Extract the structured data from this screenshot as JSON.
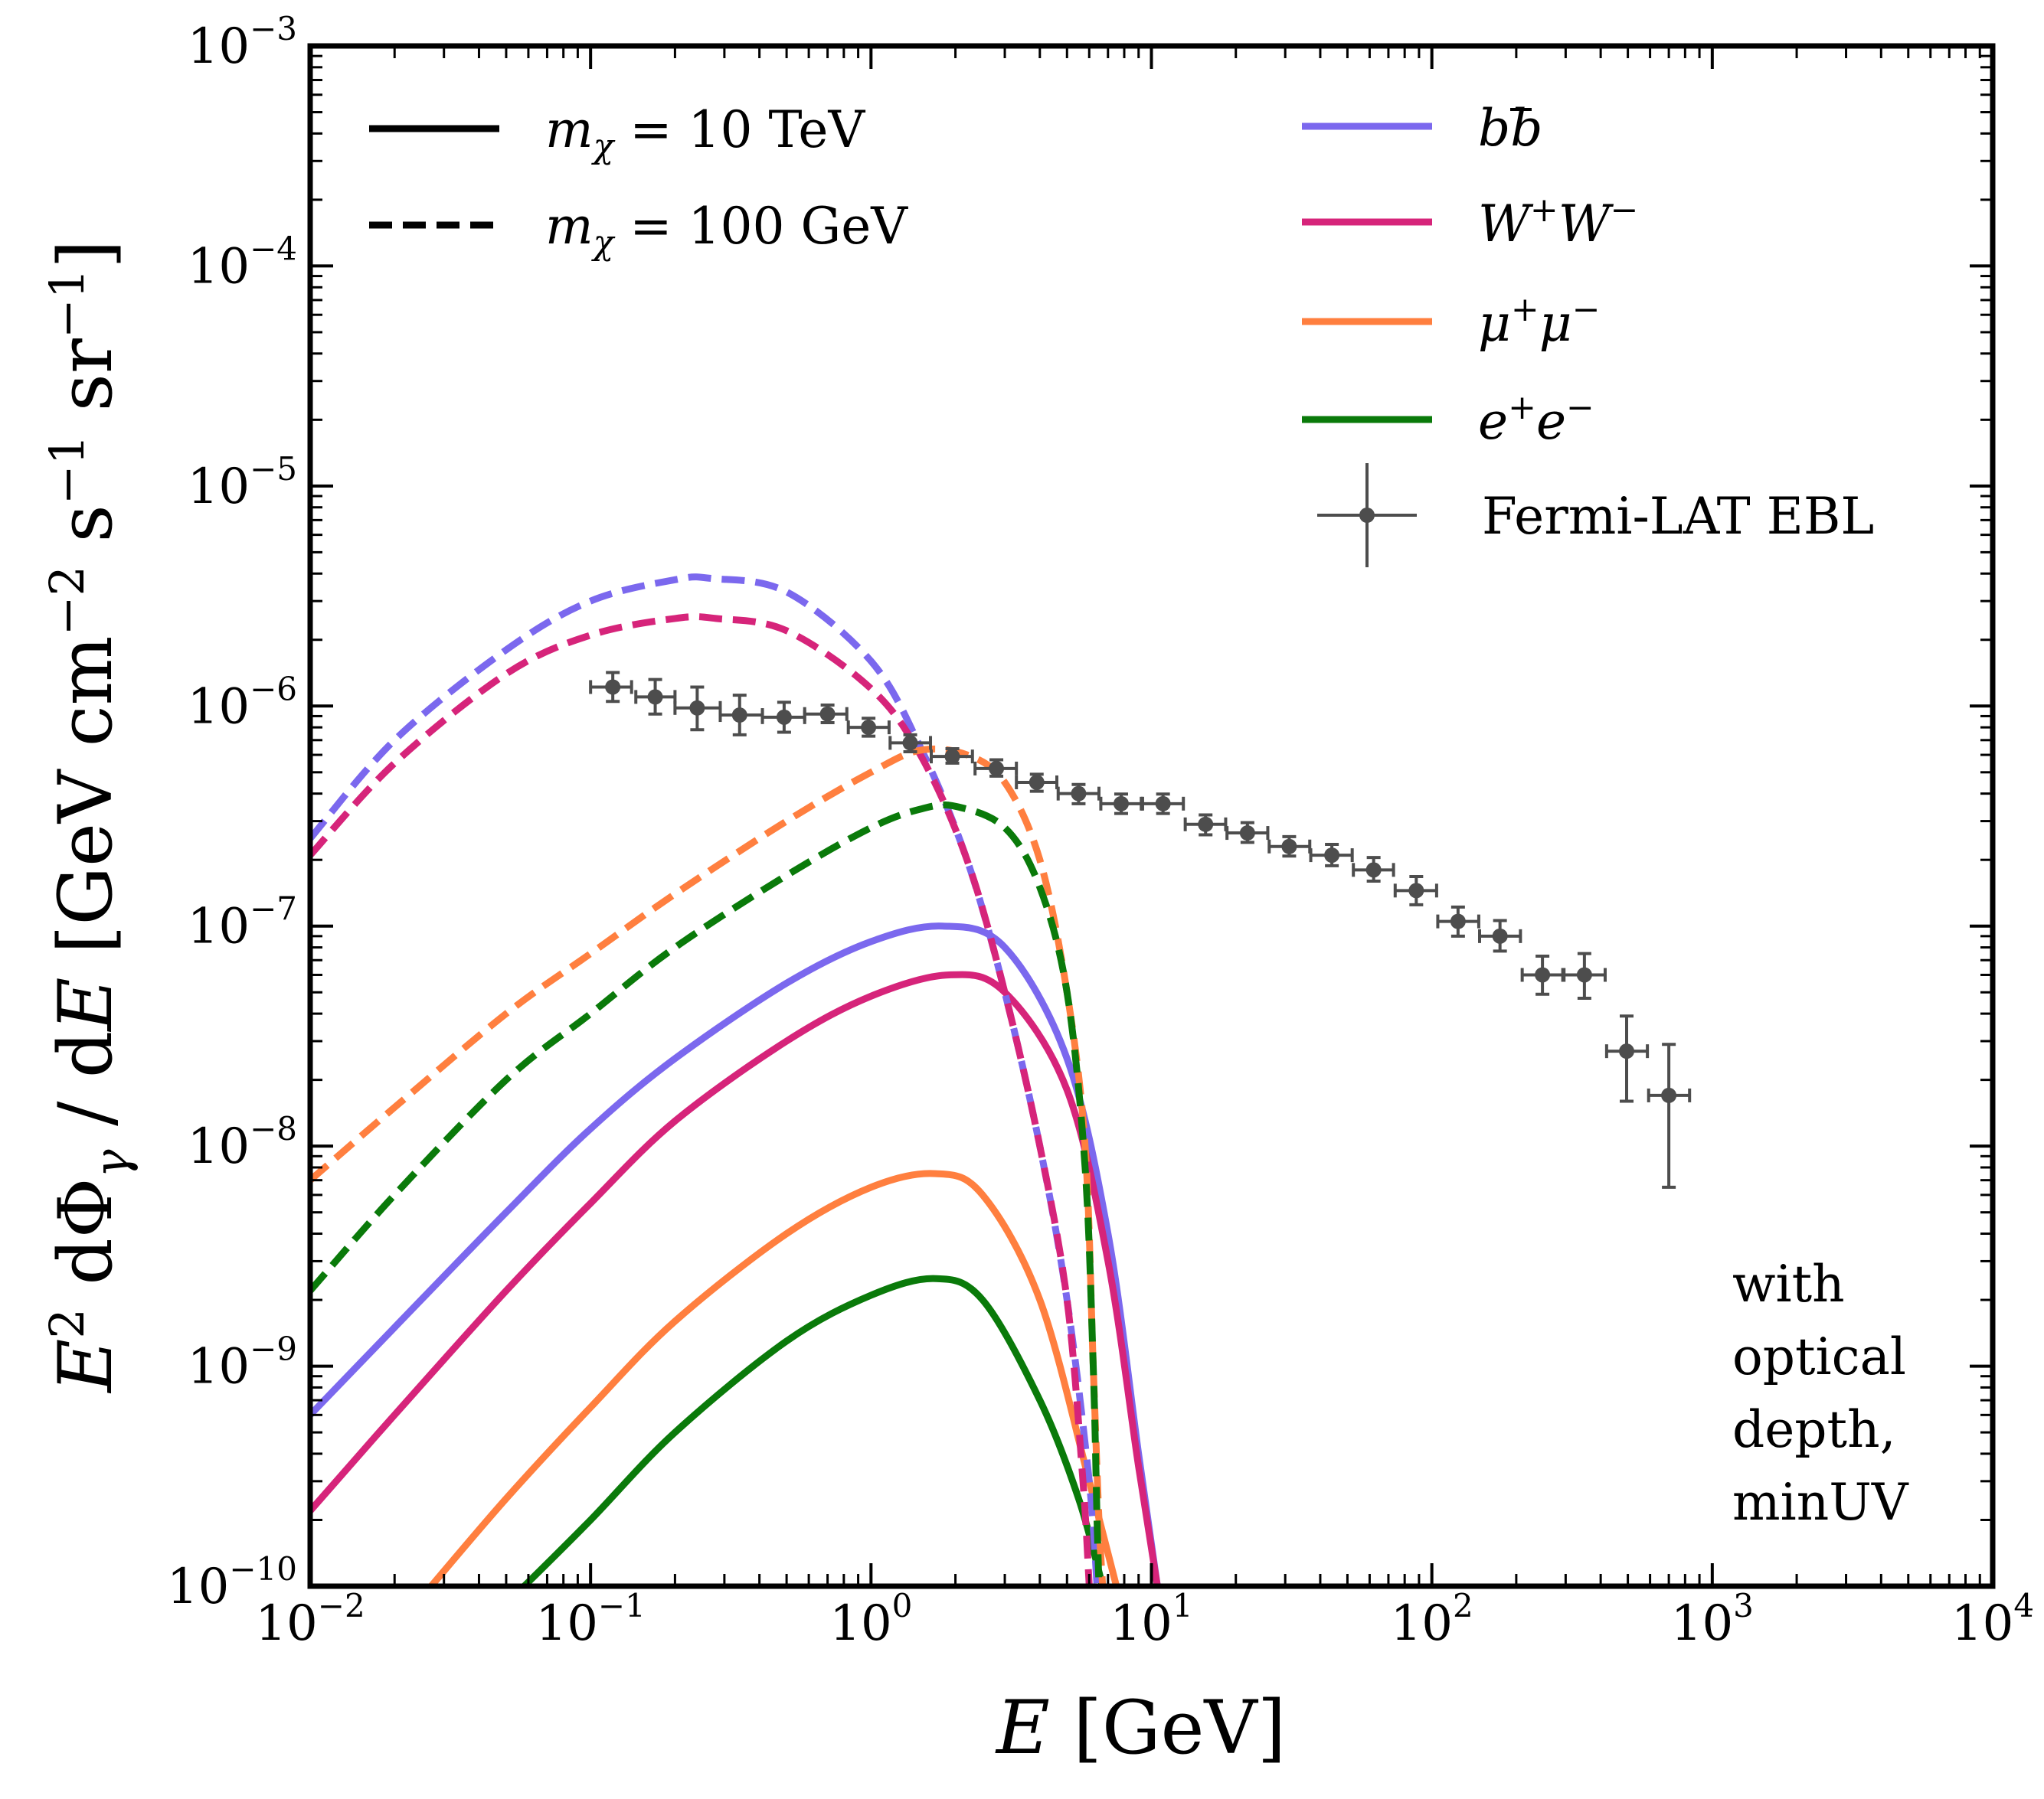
{
  "chart_data": {
    "type": "line",
    "xscale": "log",
    "yscale": "log",
    "xlim": [
      0.01,
      10000
    ],
    "ylim": [
      1e-10,
      0.001
    ],
    "xlabel": "E [GeV]",
    "ylabel": "E² dΦ_γ / dE [GeV cm⁻² s⁻¹ sr⁻¹]",
    "x_ticks": [
      {
        "base": "10",
        "exp": "−2",
        "value": 0.01
      },
      {
        "base": "10",
        "exp": "−1",
        "value": 0.1
      },
      {
        "base": "10",
        "exp": "0",
        "value": 1
      },
      {
        "base": "10",
        "exp": "1",
        "value": 10
      },
      {
        "base": "10",
        "exp": "2",
        "value": 100
      },
      {
        "base": "10",
        "exp": "3",
        "value": 1000
      },
      {
        "base": "10",
        "exp": "4",
        "value": 10000
      }
    ],
    "y_ticks": [
      {
        "base": "10",
        "exp": "−10",
        "value": 1e-10
      },
      {
        "base": "10",
        "exp": "−9",
        "value": 1e-09
      },
      {
        "base": "10",
        "exp": "−8",
        "value": 1e-08
      },
      {
        "base": "10",
        "exp": "−7",
        "value": 1e-07
      },
      {
        "base": "10",
        "exp": "−6",
        "value": 1e-06
      },
      {
        "base": "10",
        "exp": "−5",
        "value": 1e-05
      },
      {
        "base": "10",
        "exp": "−4",
        "value": 0.0001
      },
      {
        "base": "10",
        "exp": "−3",
        "value": 0.001
      }
    ],
    "legend": {
      "styles": [
        {
          "label": "m_χ = 10 TeV",
          "linestyle": "solid"
        },
        {
          "label": "m_χ = 100 GeV",
          "linestyle": "dashed"
        }
      ],
      "channels": [
        {
          "label": "bb̄",
          "color": "#7b68ee"
        },
        {
          "label": "W⁺W⁻",
          "color": "#d6247a"
        },
        {
          "label": "μ⁺μ⁻",
          "color": "#ff7f3f"
        },
        {
          "label": "e⁺e⁻",
          "color": "#0a7a0a"
        }
      ],
      "data_label": "Fermi-LAT EBL"
    },
    "annotation": [
      "with",
      "optical",
      "depth,",
      "minUV"
    ],
    "series": [
      {
        "name": "bb̄, m_χ = 10 TeV",
        "color": "#7b68ee",
        "style": "solid",
        "x": [
          0.01,
          0.02,
          0.05,
          0.1,
          0.2,
          0.5,
          1,
          1.8,
          3,
          5,
          7,
          9,
          10.5
        ],
        "y": [
          6e-10,
          1.5e-09,
          5e-09,
          1.2e-08,
          2.5e-08,
          5.5e-08,
          8.5e-08,
          1e-07,
          8e-08,
          2.5e-08,
          4e-09,
          4e-10,
          1e-10
        ]
      },
      {
        "name": "W⁺W⁻, m_χ = 10 TeV",
        "color": "#d6247a",
        "style": "solid",
        "x": [
          0.01,
          0.02,
          0.05,
          0.1,
          0.2,
          0.5,
          1,
          1.9,
          3,
          5,
          7,
          9,
          10.5
        ],
        "y": [
          2.2e-10,
          6e-10,
          2.2e-09,
          5.5e-09,
          1.3e-08,
          3e-08,
          4.8e-08,
          6e-08,
          5e-08,
          1.8e-08,
          3e-09,
          3.5e-10,
          1e-10
        ]
      },
      {
        "name": "μ⁺μ⁻, m_χ = 10 TeV",
        "color": "#ff7f3f",
        "style": "solid",
        "x": [
          0.027,
          0.05,
          0.1,
          0.2,
          0.5,
          1,
          1.7,
          2.5,
          4,
          6,
          7.5
        ],
        "y": [
          1e-10,
          2.5e-10,
          6.5e-10,
          1.6e-09,
          4e-09,
          6.5e-09,
          7.5e-09,
          6e-09,
          2e-09,
          3e-10,
          1e-10
        ]
      },
      {
        "name": "e⁺e⁻, m_χ = 10 TeV",
        "color": "#0a7a0a",
        "style": "solid",
        "x": [
          0.058,
          0.1,
          0.2,
          0.5,
          1,
          1.7,
          2.5,
          4,
          5.5,
          6.7
        ],
        "y": [
          1e-10,
          2e-10,
          5e-10,
          1.3e-09,
          2.1e-09,
          2.5e-09,
          2e-09,
          7e-10,
          2.5e-10,
          1e-10
        ]
      },
      {
        "name": "bb̄, m_χ = 100 GeV",
        "color": "#7b68ee",
        "style": "dashed",
        "x": [
          0.01,
          0.02,
          0.05,
          0.1,
          0.2,
          0.27,
          0.5,
          1,
          1.5,
          2.2,
          3,
          4,
          5,
          6,
          6.4
        ],
        "y": [
          2.5e-07,
          7e-07,
          1.8e-06,
          3e-06,
          3.75e-06,
          3.8e-06,
          3.3e-06,
          1.6e-06,
          6.5e-07,
          2e-07,
          5e-08,
          1e-08,
          2e-09,
          3e-10,
          1e-10
        ]
      },
      {
        "name": "W⁺W⁻, m_χ = 100 GeV",
        "color": "#d6247a",
        "style": "dashed",
        "x": [
          0.01,
          0.02,
          0.05,
          0.1,
          0.2,
          0.28,
          0.5,
          1,
          1.5,
          2.2,
          3,
          4,
          5,
          5.7,
          6
        ],
        "y": [
          2.1e-07,
          5.5e-07,
          1.4e-06,
          2.1e-06,
          2.5e-06,
          2.5e-06,
          2.2e-06,
          1.2e-06,
          6e-07,
          2e-07,
          5e-08,
          1e-08,
          2e-09,
          3e-10,
          1e-10
        ]
      },
      {
        "name": "μ⁺μ⁻, m_χ = 100 GeV",
        "color": "#ff7f3f",
        "style": "dashed",
        "x": [
          0.01,
          0.02,
          0.05,
          0.1,
          0.2,
          0.5,
          1,
          1.5,
          2.2,
          3,
          4,
          5,
          5.8,
          6.2,
          6.5,
          6.7
        ],
        "y": [
          7e-09,
          1.5e-08,
          4e-08,
          7.5e-08,
          1.4e-07,
          3e-07,
          5e-07,
          6.3e-07,
          6e-07,
          4.5e-07,
          2e-07,
          5e-08,
          1e-08,
          1e-09,
          2e-10,
          1e-10
        ]
      },
      {
        "name": "e⁺e⁻, m_χ = 100 GeV",
        "color": "#0a7a0a",
        "style": "dashed",
        "x": [
          0.01,
          0.02,
          0.05,
          0.1,
          0.2,
          0.5,
          1,
          1.5,
          2,
          3,
          4,
          5,
          5.8,
          6.2,
          6.4,
          6.5
        ],
        "y": [
          2.2e-09,
          6e-09,
          2e-08,
          4e-08,
          8e-08,
          1.7e-07,
          2.8e-07,
          3.4e-07,
          3.5e-07,
          2.8e-07,
          1.5e-07,
          5e-08,
          8e-09,
          1e-09,
          2e-10,
          1e-10
        ]
      }
    ],
    "fermi_lat_ebl": {
      "color": "#4d4d4d",
      "points": [
        {
          "x": 0.12,
          "y": 1.22e-06,
          "xlo": 0.1,
          "xhi": 0.14,
          "ylo": 1.05e-06,
          "yhi": 1.42e-06
        },
        {
          "x": 0.17,
          "y": 1.1e-06,
          "xlo": 0.145,
          "xhi": 0.2,
          "ylo": 9.2e-07,
          "yhi": 1.32e-06
        },
        {
          "x": 0.24,
          "y": 9.8e-07,
          "xlo": 0.2,
          "xhi": 0.29,
          "ylo": 7.8e-07,
          "yhi": 1.22e-06
        },
        {
          "x": 0.34,
          "y": 9.1e-07,
          "xlo": 0.29,
          "xhi": 0.41,
          "ylo": 7.4e-07,
          "yhi": 1.12e-06
        },
        {
          "x": 0.49,
          "y": 8.9e-07,
          "xlo": 0.41,
          "xhi": 0.58,
          "ylo": 7.6e-07,
          "yhi": 1.04e-06
        },
        {
          "x": 0.7,
          "y": 9.2e-07,
          "xlo": 0.58,
          "xhi": 0.82,
          "ylo": 8.4e-07,
          "yhi": 1.01e-06
        },
        {
          "x": 0.98,
          "y": 8e-07,
          "xlo": 0.83,
          "xhi": 1.16,
          "ylo": 7.3e-07,
          "yhi": 8.8e-07
        },
        {
          "x": 1.38,
          "y": 6.8e-07,
          "xlo": 1.17,
          "xhi": 1.63,
          "ylo": 6.2e-07,
          "yhi": 7.4e-07
        },
        {
          "x": 1.95,
          "y": 5.9e-07,
          "xlo": 1.64,
          "xhi": 2.3,
          "ylo": 5.5e-07,
          "yhi": 6.4e-07
        },
        {
          "x": 2.8,
          "y": 5.2e-07,
          "xlo": 2.35,
          "xhi": 3.3,
          "ylo": 4.8e-07,
          "yhi": 5.7e-07
        },
        {
          "x": 3.9,
          "y": 4.5e-07,
          "xlo": 3.3,
          "xhi": 4.6,
          "ylo": 4.1e-07,
          "yhi": 4.9e-07
        },
        {
          "x": 5.5,
          "y": 4e-07,
          "xlo": 4.65,
          "xhi": 6.5,
          "ylo": 3.6e-07,
          "yhi": 4.4e-07
        },
        {
          "x": 7.8,
          "y": 3.6e-07,
          "xlo": 6.6,
          "xhi": 9.2,
          "ylo": 3.25e-07,
          "yhi": 3.98e-07
        },
        {
          "x": 11,
          "y": 3.6e-07,
          "xlo": 9.3,
          "xhi": 13,
          "ylo": 3.25e-07,
          "yhi": 3.98e-07
        },
        {
          "x": 15.6,
          "y": 2.9e-07,
          "xlo": 13.2,
          "xhi": 18.4,
          "ylo": 2.6e-07,
          "yhi": 3.2e-07
        },
        {
          "x": 22,
          "y": 2.65e-07,
          "xlo": 18.6,
          "xhi": 26,
          "ylo": 2.4e-07,
          "yhi": 2.95e-07
        },
        {
          "x": 31,
          "y": 2.3e-07,
          "xlo": 26.3,
          "xhi": 36.7,
          "ylo": 2.08e-07,
          "yhi": 2.55e-07
        },
        {
          "x": 44,
          "y": 2.1e-07,
          "xlo": 37,
          "xhi": 52,
          "ylo": 1.88e-07,
          "yhi": 2.35e-07
        },
        {
          "x": 62,
          "y": 1.8e-07,
          "xlo": 52.5,
          "xhi": 73,
          "ylo": 1.6e-07,
          "yhi": 2.05e-07
        },
        {
          "x": 88,
          "y": 1.45e-07,
          "xlo": 74,
          "xhi": 104,
          "ylo": 1.25e-07,
          "yhi": 1.68e-07
        },
        {
          "x": 124,
          "y": 1.05e-07,
          "xlo": 105,
          "xhi": 147,
          "ylo": 9e-08,
          "yhi": 1.22e-07
        },
        {
          "x": 175,
          "y": 9e-08,
          "xlo": 148,
          "xhi": 207,
          "ylo": 7.7e-08,
          "yhi": 1.06e-07
        },
        {
          "x": 248,
          "y": 6e-08,
          "xlo": 210,
          "xhi": 293,
          "ylo": 4.9e-08,
          "yhi": 7.3e-08
        },
        {
          "x": 350,
          "y": 6e-08,
          "xlo": 296,
          "xhi": 415,
          "ylo": 4.7e-08,
          "yhi": 7.5e-08
        },
        {
          "x": 495,
          "y": 2.7e-08,
          "xlo": 420,
          "xhi": 587,
          "ylo": 1.6e-08,
          "yhi": 3.9e-08
        },
        {
          "x": 700,
          "y": 1.7e-08,
          "xlo": 593,
          "xhi": 830,
          "ylo": 6.5e-09,
          "yhi": 2.9e-08
        }
      ]
    }
  }
}
